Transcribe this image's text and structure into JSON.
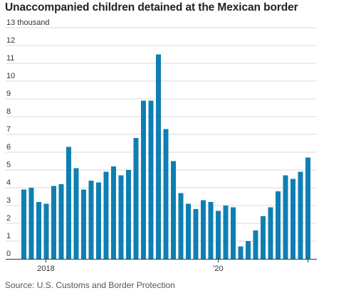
{
  "chart_data": {
    "type": "bar",
    "title": "Unaccompanied children detained at the Mexican border",
    "source": "Source: U.S. Customs and Border Protection",
    "y_unit_label": "13 thousand",
    "ylim": [
      0,
      13
    ],
    "y_ticks": [
      0,
      1,
      2,
      3,
      4,
      5,
      6,
      7,
      8,
      9,
      10,
      11,
      12,
      13
    ],
    "x_tick_labels": [
      {
        "label": "2018",
        "index": 2
      },
      {
        "label": "'20",
        "index": 26
      }
    ],
    "bar_color": "#0f7fb3",
    "grid": true,
    "values": [
      3.9,
      4.0,
      3.2,
      3.1,
      4.1,
      4.2,
      6.3,
      5.1,
      3.9,
      4.4,
      4.3,
      4.9,
      5.2,
      4.7,
      5.0,
      6.8,
      8.9,
      8.9,
      11.5,
      7.3,
      5.5,
      3.7,
      3.1,
      2.8,
      3.3,
      3.2,
      2.7,
      3.0,
      2.9,
      0.7,
      1.0,
      1.6,
      2.4,
      2.9,
      3.8,
      4.7,
      4.5,
      4.9,
      5.7
    ]
  }
}
